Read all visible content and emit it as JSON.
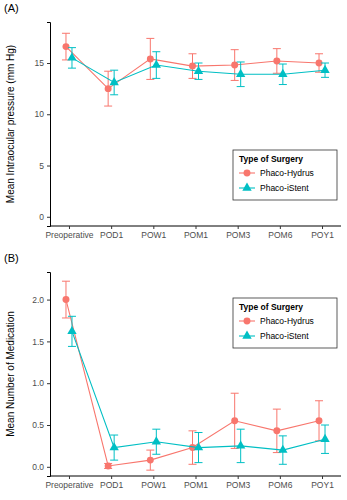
{
  "chart_data": [
    {
      "type": "line",
      "title": "(A)",
      "y_label": "Mean Intraocular pressure (mm Hg)",
      "categories": [
        "Preoperative",
        "POD1",
        "POW1",
        "POM1",
        "POM3",
        "POM6",
        "POY1"
      ],
      "ylim": [
        -0.9,
        19
      ],
      "yticks": [
        0,
        5,
        10,
        15
      ],
      "legend": "bottom-right",
      "legend_title": "Type of Surgery",
      "grid": false,
      "series": [
        {
          "name": "Phaco-Hydrus",
          "color": "#F8766D",
          "marker": "circle",
          "values": [
            16.6,
            12.5,
            15.4,
            14.7,
            14.8,
            15.2,
            15.0
          ],
          "errors": [
            1.3,
            1.7,
            2.0,
            1.2,
            1.5,
            1.2,
            0.9
          ]
        },
        {
          "name": "Phaco-iStent",
          "color": "#00BFC4",
          "marker": "triangle",
          "values": [
            15.5,
            13.1,
            14.8,
            14.2,
            13.9,
            13.9,
            14.3
          ],
          "errors": [
            1.0,
            1.2,
            1.3,
            0.8,
            1.2,
            1.0,
            0.7
          ]
        }
      ]
    },
    {
      "type": "line",
      "title": "(B)",
      "y_label": "Mean Number of Medication",
      "categories": [
        "Preoperative",
        "POD1",
        "POW1",
        "POM1",
        "POM3",
        "POM6",
        "POY1"
      ],
      "ylim": [
        -0.11,
        2.33
      ],
      "yticks": [
        {
          "value": 0,
          "label": "0.0"
        },
        {
          "value": 0.5,
          "label": "0.5"
        },
        {
          "value": 1,
          "label": "1.0"
        },
        {
          "value": 1.5,
          "label": "1.5"
        },
        {
          "value": 2,
          "label": "2.0"
        }
      ],
      "legend": "top-right",
      "legend_title": "Type of Surgery",
      "grid": false,
      "series": [
        {
          "name": "Phaco-Hydrus",
          "color": "#F8766D",
          "marker": "circle",
          "values": [
            2.0,
            0.01,
            0.08,
            0.23,
            0.55,
            0.43,
            0.55
          ],
          "errors": [
            0.22,
            0.03,
            0.12,
            0.2,
            0.33,
            0.26,
            0.24
          ]
        },
        {
          "name": "Phaco-iStent",
          "color": "#00BFC4",
          "marker": "triangle",
          "values": [
            1.62,
            0.23,
            0.3,
            0.23,
            0.25,
            0.2,
            0.33
          ],
          "errors": [
            0.18,
            0.15,
            0.15,
            0.18,
            0.2,
            0.17,
            0.17
          ]
        }
      ]
    }
  ]
}
